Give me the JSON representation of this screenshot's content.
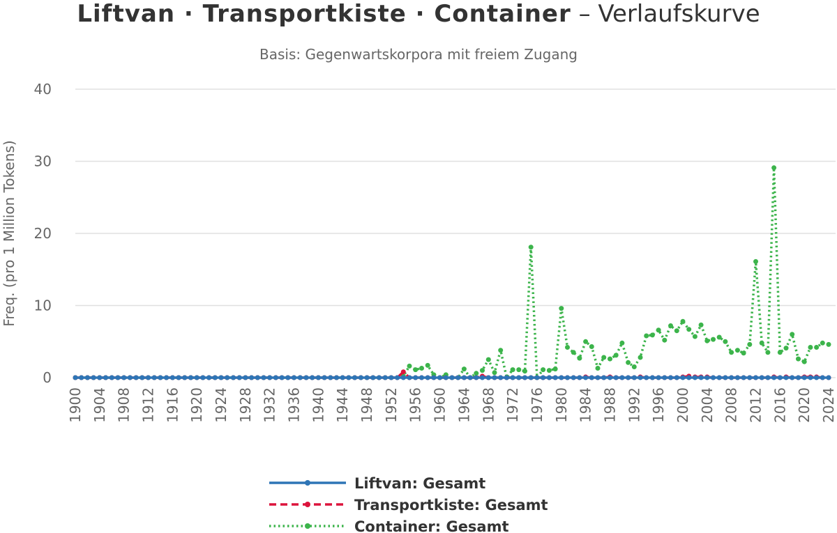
{
  "title": {
    "main": "Liftvan · Transportkiste · Container",
    "suffix": "– Verlaufskurve"
  },
  "subtitle": "Basis: Gegenwartskorpora mit freiem Zugang",
  "chart_data": {
    "type": "line",
    "title": "Liftvan · Transportkiste · Container – Verlaufskurve",
    "subtitle": "Basis: Gegenwartskorpora mit freiem Zugang",
    "ylabel": "Freq. (pro 1 Million Tokens)",
    "xlabel": "",
    "xlim": [
      1900,
      2024
    ],
    "ylim": [
      0,
      40
    ],
    "yticks": [
      0,
      10,
      20,
      30,
      40
    ],
    "xticks": [
      1900,
      1904,
      1908,
      1912,
      1916,
      1920,
      1924,
      1928,
      1932,
      1936,
      1940,
      1944,
      1948,
      1952,
      1956,
      1960,
      1964,
      1968,
      1972,
      1976,
      1980,
      1984,
      1988,
      1992,
      1996,
      2000,
      2004,
      2008,
      2012,
      2016,
      2020,
      2024
    ],
    "grid": true,
    "legend_position": "bottom",
    "series": [
      {
        "name": "Liftvan: Gesamt",
        "color": "#2e75b6",
        "style": "solid",
        "x_start": 1900,
        "values": [
          0,
          0,
          0,
          0,
          0,
          0,
          0,
          0,
          0,
          0,
          0,
          0,
          0,
          0,
          0,
          0,
          0,
          0,
          0,
          0,
          0,
          0,
          0,
          0,
          0,
          0,
          0,
          0,
          0,
          0,
          0,
          0,
          0,
          0,
          0,
          0,
          0,
          0,
          0,
          0,
          0,
          0,
          0,
          0,
          0,
          0,
          0,
          0,
          0,
          0,
          0,
          0,
          0,
          0,
          0,
          0,
          0,
          0,
          0,
          0,
          0,
          0,
          0,
          0,
          0,
          0,
          0,
          0,
          0,
          0,
          0,
          0,
          0,
          0,
          0,
          0,
          0,
          0,
          0,
          0,
          0,
          0,
          0,
          0,
          0,
          0,
          0,
          0,
          0,
          0,
          0,
          0,
          0,
          0,
          0,
          0,
          0,
          0,
          0,
          0,
          0,
          0,
          0,
          0,
          0,
          0,
          0,
          0,
          0,
          0,
          0,
          0,
          0,
          0,
          0,
          0,
          0,
          0,
          0,
          0,
          0,
          0,
          0,
          0,
          0
        ]
      },
      {
        "name": "Transportkiste: Gesamt",
        "color": "#dc143c",
        "style": "dashed",
        "x_start": 1900,
        "values": [
          0,
          0,
          0,
          0,
          0,
          0,
          0,
          0,
          0,
          0,
          0,
          0,
          0,
          0,
          0,
          0,
          0,
          0,
          0,
          0,
          0,
          0,
          0,
          0,
          0,
          0,
          0,
          0,
          0,
          0,
          0,
          0,
          0,
          0,
          0,
          0,
          0,
          0,
          0,
          0,
          0,
          0,
          0,
          0,
          0,
          0,
          0,
          0,
          0,
          0,
          0,
          0,
          0,
          0,
          0.8,
          0,
          0,
          0,
          0,
          0,
          0,
          0,
          0,
          0,
          0,
          0,
          0,
          0.2,
          0,
          0,
          0,
          0,
          0,
          0,
          0,
          0,
          0,
          0,
          0,
          0,
          0,
          0,
          0,
          0,
          0.1,
          0,
          0,
          0,
          0.1,
          0,
          0,
          0,
          0,
          0.1,
          0,
          0,
          0,
          0,
          0,
          0,
          0.1,
          0.2,
          0.1,
          0.1,
          0.1,
          0,
          0,
          0,
          0,
          0,
          0,
          0,
          0,
          0,
          0,
          0.1,
          0,
          0.1,
          0,
          0,
          0.1,
          0.1,
          0.1,
          0,
          0
        ]
      },
      {
        "name": "Container: Gesamt",
        "color": "#3cb44b",
        "style": "dotted",
        "x_start": 1900,
        "values": [
          0,
          0,
          0,
          0,
          0,
          0,
          0,
          0,
          0,
          0,
          0,
          0,
          0,
          0,
          0,
          0,
          0,
          0,
          0,
          0,
          0,
          0,
          0,
          0,
          0,
          0,
          0,
          0,
          0,
          0,
          0,
          0,
          0,
          0,
          0,
          0,
          0,
          0,
          0,
          0,
          0,
          0,
          0,
          0,
          0,
          0,
          0,
          0,
          0,
          0,
          0,
          0,
          0,
          0,
          0.2,
          1.6,
          1.1,
          1.3,
          1.7,
          0.4,
          0,
          0.4,
          0,
          0,
          1.2,
          0,
          0.6,
          1.0,
          2.5,
          0.7,
          3.8,
          0,
          1.1,
          1.1,
          0.9,
          18.1,
          0,
          1.1,
          1.0,
          1.2,
          9.6,
          4.2,
          3.5,
          2.7,
          5.0,
          4.3,
          1.3,
          2.8,
          2.6,
          3.1,
          4.8,
          2.1,
          1.5,
          2.8,
          5.8,
          5.9,
          6.6,
          5.2,
          7.2,
          6.5,
          7.8,
          6.7,
          5.7,
          7.3,
          5.1,
          5.3,
          5.6,
          5.0,
          3.5,
          3.8,
          3.4,
          4.6,
          16.1,
          4.8,
          3.5,
          29.1,
          3.5,
          4.1,
          6.0,
          2.6,
          2.2,
          4.2,
          4.2,
          4.8,
          4.6
        ]
      }
    ]
  }
}
